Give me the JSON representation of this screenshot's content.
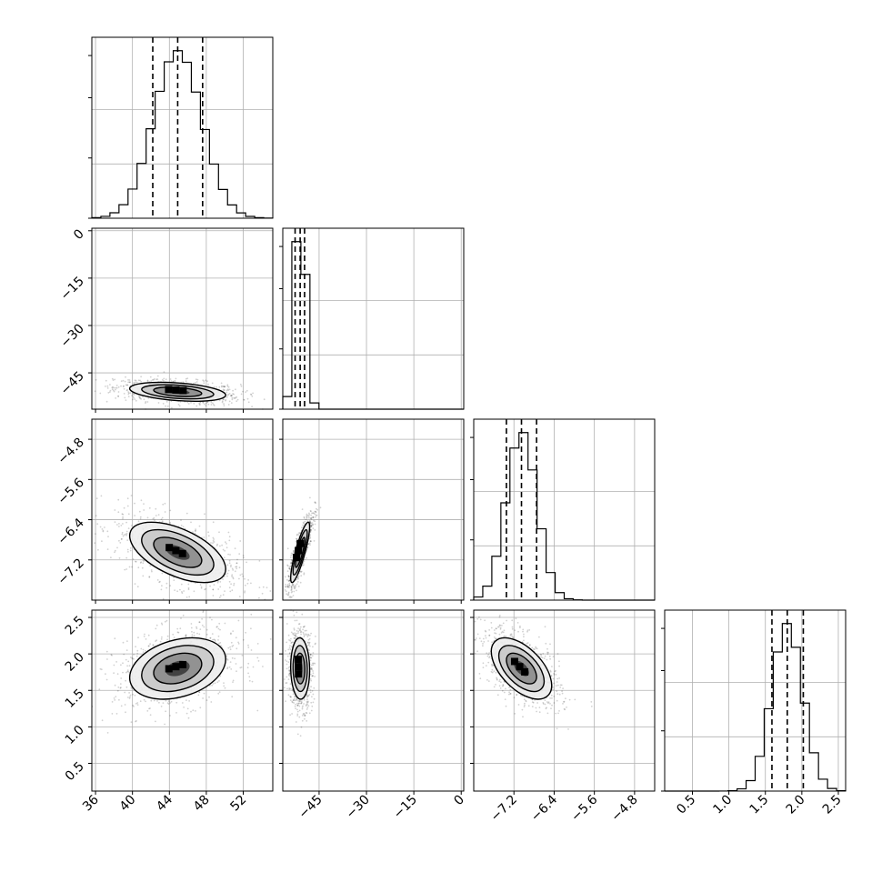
{
  "figure": {
    "kind": "corner-plot"
  },
  "chart_data": {
    "type": "corner",
    "n_params": 4,
    "title": "",
    "parameters": [
      {
        "index": 0,
        "range": [
          35.6,
          55.2
        ],
        "ticks": [
          36,
          40,
          44,
          48,
          52
        ],
        "tick_labels": [
          "36",
          "40",
          "44",
          "48",
          "52"
        ],
        "quantiles": [
          42.2,
          44.9,
          47.6
        ],
        "mean": 44.9,
        "sd": 2.6
      },
      {
        "index": 1,
        "range": [
          -56.5,
          0.8
        ],
        "ticks": [
          -45,
          -30,
          -15,
          0
        ],
        "tick_labels": [
          "−45",
          "−30",
          "−15",
          "0"
        ],
        "y_ticks": [
          0,
          -15,
          -30,
          -45
        ],
        "y_tick_labels": [
          "0",
          "−15",
          "−30",
          "−45"
        ],
        "quantiles": [
          -52.6,
          -51.0,
          -49.6
        ],
        "mean": -51.0,
        "sd": 1.5
      },
      {
        "index": 2,
        "range": [
          -8.0,
          -4.4
        ],
        "ticks": [
          -7.2,
          -6.4,
          -5.6,
          -4.8
        ],
        "tick_labels": [
          "−7.2",
          "−6.4",
          "−5.6",
          "−4.8"
        ],
        "y_ticks": [
          -4.8,
          -5.6,
          -6.4,
          -7.2
        ],
        "y_tick_labels": [
          "−4.8",
          "−5.6",
          "−6.4",
          "−7.2"
        ],
        "quantiles": [
          -7.35,
          -7.05,
          -6.75
        ],
        "mean": -7.05,
        "sd": 0.3
      },
      {
        "index": 3,
        "range": [
          0.12,
          2.6
        ],
        "ticks": [
          0.5,
          1.0,
          1.5,
          2.0,
          2.5
        ],
        "tick_labels": [
          "0.5",
          "1.0",
          "1.5",
          "2.0",
          "2.5"
        ],
        "y_ticks": [
          0.5,
          1.0,
          1.5,
          2.0,
          2.5
        ],
        "y_tick_labels": [
          "0.5",
          "1.0",
          "1.5",
          "2.0",
          "2.5"
        ],
        "quantiles": [
          1.59,
          1.8,
          2.02
        ],
        "mean": 1.8,
        "sd": 0.21
      }
    ],
    "correlations": [
      {
        "pair": [
          0,
          1
        ],
        "rho": -0.35
      },
      {
        "pair": [
          0,
          2
        ],
        "rho": -0.55
      },
      {
        "pair": [
          0,
          3
        ],
        "rho": 0.3
      },
      {
        "pair": [
          1,
          2
        ],
        "rho": 0.85
      },
      {
        "pair": [
          1,
          3
        ],
        "rho": -0.05
      },
      {
        "pair": [
          2,
          3
        ],
        "rho": -0.55
      }
    ],
    "contour_levels_sigma": [
      0.5,
      1.0,
      1.5,
      2.0
    ],
    "histogram_bins": 20,
    "quantile_lines": [
      0.16,
      0.5,
      0.84
    ],
    "grid": true,
    "colors": {
      "line": "#000000",
      "density": "#000000",
      "grid": "#b0b0b0",
      "background": "#ffffff"
    }
  }
}
